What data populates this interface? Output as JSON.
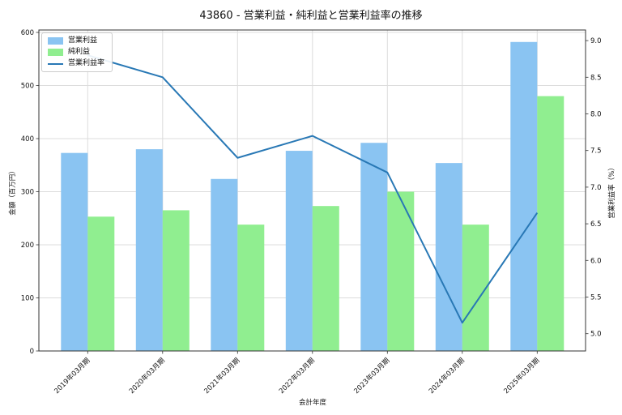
{
  "title": "43860 - 営業利益・純利益と営業利益率の推移",
  "legend": {
    "items": [
      {
        "label": "営業利益",
        "swatch": "patch",
        "color": "#8AC4F2"
      },
      {
        "label": "純利益",
        "swatch": "patch",
        "color": "#90EE90"
      },
      {
        "label": "営業利益率",
        "swatch": "line",
        "color": "#2878B5"
      }
    ]
  },
  "axes": {
    "x_title": "会計年度",
    "y_left_title": "金額（百万円）",
    "y_right_title": "営業利益率（%）",
    "y_left_ticks": [
      0,
      100,
      200,
      300,
      400,
      500,
      600
    ],
    "y_right_ticks": [
      "5.0",
      "5.5",
      "6.0",
      "6.5",
      "7.0",
      "7.5",
      "8.0",
      "8.5",
      "9.0"
    ],
    "grid": "on"
  },
  "chart_data": {
    "type": "bar+line",
    "title": "43860 - 営業利益・純利益と営業利益率の推移",
    "xlabel": "会計年度",
    "ylabel_left": "金額（百万円）",
    "ylabel_right": "営業利益率（%）",
    "ylim_left": [
      0,
      600
    ],
    "ylim_right": [
      5.0,
      9.0
    ],
    "legend_position": "upper-left",
    "categories": [
      "2019年03月期",
      "2020年03月期",
      "2021年03月期",
      "2022年03月期",
      "2023年03月期",
      "2024年03月期",
      "2025年03月期"
    ],
    "series": [
      {
        "name": "営業利益",
        "type": "bar",
        "axis": "left",
        "color": "#8AC4F2",
        "values": [
          373,
          380,
          324,
          377,
          392,
          354,
          582
        ]
      },
      {
        "name": "純利益",
        "type": "bar",
        "axis": "left",
        "color": "#90EE90",
        "values": [
          253,
          265,
          238,
          273,
          300,
          238,
          480
        ]
      },
      {
        "name": "営業利益率",
        "type": "line",
        "axis": "right",
        "color": "#2878B5",
        "values": [
          8.8,
          8.5,
          7.4,
          7.7,
          7.2,
          5.15,
          6.65
        ]
      }
    ],
    "colors": {
      "grid": "#dcdcdc",
      "spine": "#333333",
      "background": "#ffffff"
    }
  }
}
